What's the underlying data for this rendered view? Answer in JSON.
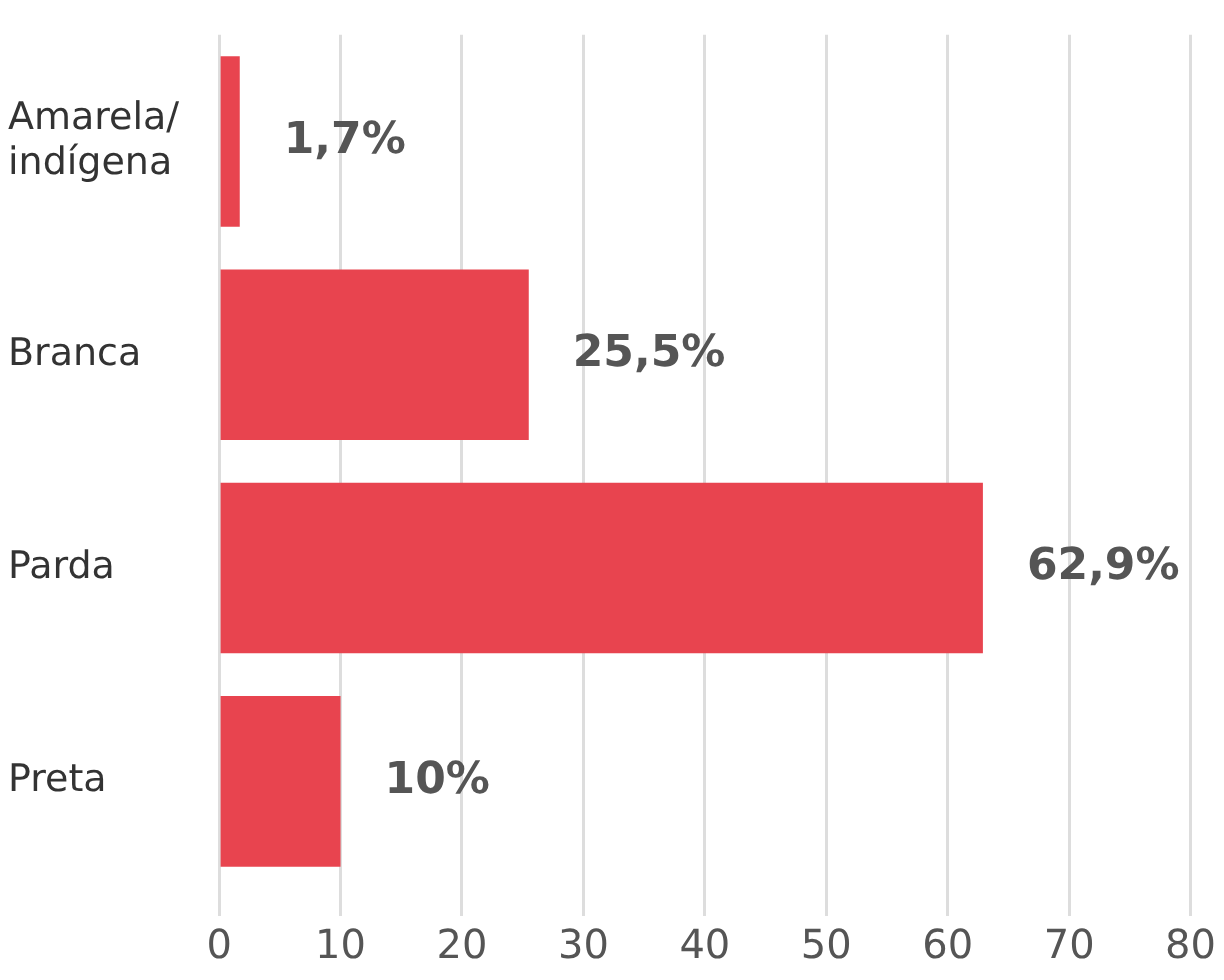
{
  "chart_data": {
    "type": "bar",
    "orientation": "horizontal",
    "categories": [
      "Amarela/indígena",
      "Branca",
      "Parda",
      "Preta"
    ],
    "values": [
      1.7,
      25.5,
      62.9,
      10
    ],
    "color": "#e8444f",
    "value_labels": [
      "1,7%",
      "25,5%",
      "62,9%",
      "10%"
    ],
    "xlim": [
      0,
      80
    ],
    "xticks": [
      0,
      10,
      20,
      30,
      40,
      50,
      60,
      70,
      80
    ],
    "grid": "x",
    "legend": false
  }
}
